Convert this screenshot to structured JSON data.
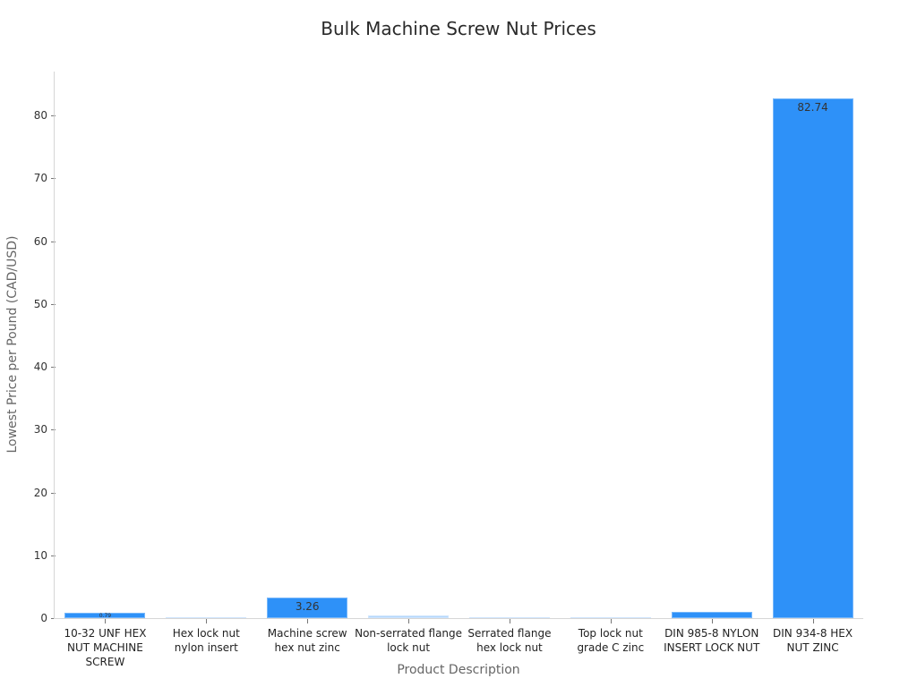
{
  "chart_data": {
    "type": "bar",
    "title": "Bulk Machine Screw Nut Prices",
    "xlabel": "Product Description",
    "ylabel": "Lowest Price per Pound (CAD/USD)",
    "ylim": [
      0,
      87
    ],
    "yticks": [
      0,
      10,
      20,
      30,
      40,
      50,
      60,
      70,
      80
    ],
    "grid": false,
    "legend": null,
    "categories": [
      [
        "10-32 UNF HEX",
        "NUT MACHINE SCREW"
      ],
      [
        "Hex lock nut",
        "nylon insert"
      ],
      [
        "Machine screw",
        "hex nut zinc"
      ],
      [
        "Non-serrated flange",
        "lock nut"
      ],
      [
        "Serrated flange",
        "hex lock nut"
      ],
      [
        "Top lock nut",
        "grade C zinc"
      ],
      [
        "DIN 985-8 NYLON",
        "INSERT LOCK NUT"
      ],
      [
        "DIN 934-8 HEX",
        "NUT ZINC"
      ]
    ],
    "values": [
      0.79,
      0.12,
      3.26,
      0.42,
      0.08,
      0.15,
      0.95,
      82.74
    ],
    "data_labels": [
      "0.79",
      "",
      "3.26",
      "",
      "",
      "",
      "",
      "82.74"
    ],
    "bar_color": "#2e91f8"
  }
}
